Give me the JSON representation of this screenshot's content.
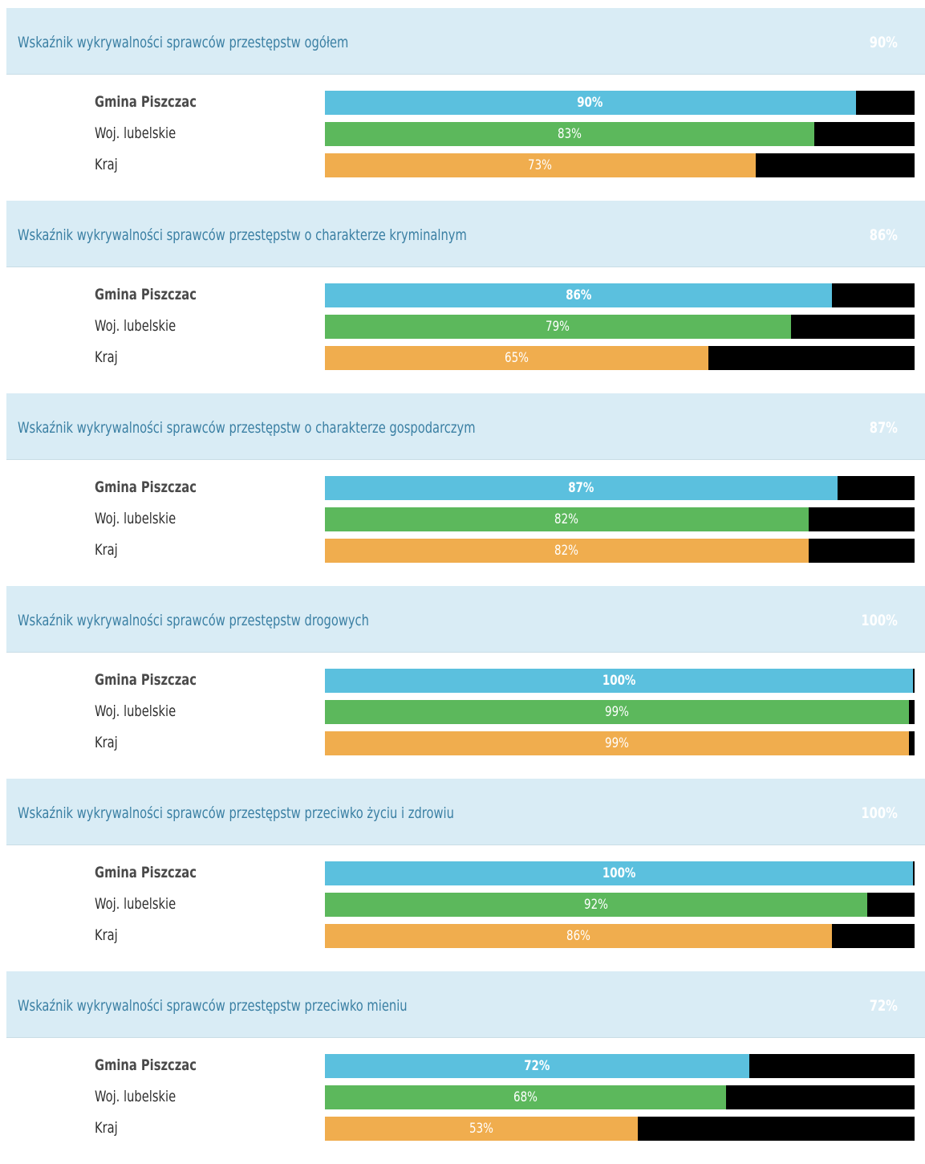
{
  "chart_data": [
    {
      "type": "bar",
      "title": "Wskaźnik wykrywalności sprawców przestępstw ogółem",
      "headline_value": "90%",
      "categories": [
        "Gmina Piszczac",
        "Woj. lubelskie",
        "Kraj"
      ],
      "values": [
        90,
        83,
        73
      ],
      "labels": [
        "90%",
        "83%",
        "73%"
      ],
      "colors": [
        "#5bc0de",
        "#5cb85c",
        "#f0ad4e"
      ],
      "track_color": "#000000",
      "ylim": [
        0,
        100
      ]
    },
    {
      "type": "bar",
      "title": "Wskaźnik wykrywalności sprawców przestępstw o charakterze kryminalnym",
      "headline_value": "86%",
      "categories": [
        "Gmina Piszczac",
        "Woj. lubelskie",
        "Kraj"
      ],
      "values": [
        86,
        79,
        65
      ],
      "labels": [
        "86%",
        "79%",
        "65%"
      ],
      "colors": [
        "#5bc0de",
        "#5cb85c",
        "#f0ad4e"
      ],
      "track_color": "#000000",
      "ylim": [
        0,
        100
      ]
    },
    {
      "type": "bar",
      "title": "Wskaźnik wykrywalności sprawców przestępstw o charakterze gospodarczym",
      "headline_value": "87%",
      "categories": [
        "Gmina Piszczac",
        "Woj. lubelskie",
        "Kraj"
      ],
      "values": [
        87,
        82,
        82
      ],
      "labels": [
        "87%",
        "82%",
        "82%"
      ],
      "colors": [
        "#5bc0de",
        "#5cb85c",
        "#f0ad4e"
      ],
      "track_color": "#000000",
      "ylim": [
        0,
        100
      ]
    },
    {
      "type": "bar",
      "title": "Wskaźnik wykrywalności sprawców przestępstw drogowych",
      "headline_value": "100%",
      "categories": [
        "Gmina Piszczac",
        "Woj. lubelskie",
        "Kraj"
      ],
      "values": [
        100,
        99,
        99
      ],
      "labels": [
        "100%",
        "99%",
        "99%"
      ],
      "colors": [
        "#5bc0de",
        "#5cb85c",
        "#f0ad4e"
      ],
      "track_color": "#000000",
      "ylim": [
        0,
        100
      ]
    },
    {
      "type": "bar",
      "title": "Wskaźnik wykrywalności sprawców przestępstw przeciwko życiu i zdrowiu",
      "headline_value": "100%",
      "categories": [
        "Gmina Piszczac",
        "Woj. lubelskie",
        "Kraj"
      ],
      "values": [
        100,
        92,
        86
      ],
      "labels": [
        "100%",
        "92%",
        "86%"
      ],
      "colors": [
        "#5bc0de",
        "#5cb85c",
        "#f0ad4e"
      ],
      "track_color": "#000000",
      "ylim": [
        0,
        100
      ]
    },
    {
      "type": "bar",
      "title": "Wskaźnik wykrywalności sprawców przestępstw przeciwko mieniu",
      "headline_value": "72%",
      "categories": [
        "Gmina Piszczac",
        "Woj. lubelskie",
        "Kraj"
      ],
      "values": [
        72,
        68,
        53
      ],
      "labels": [
        "72%",
        "68%",
        "53%"
      ],
      "colors": [
        "#5bc0de",
        "#5cb85c",
        "#f0ad4e"
      ],
      "track_color": "#000000",
      "ylim": [
        0,
        100
      ]
    }
  ]
}
